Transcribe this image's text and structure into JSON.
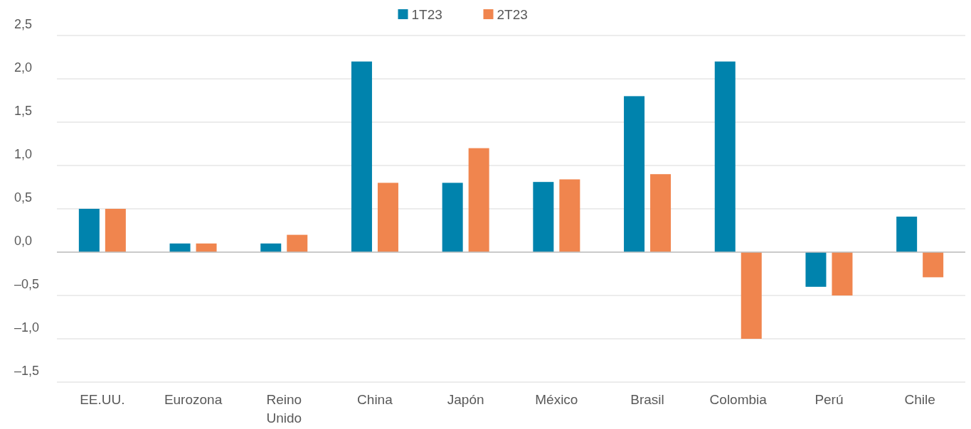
{
  "chart_data": {
    "type": "bar",
    "categories": [
      "EE.UU.",
      "Eurozona",
      "Reino Unido",
      "China",
      "Japón",
      "México",
      "Brasil",
      "Colombia",
      "Perú",
      "Chile"
    ],
    "series": [
      {
        "name": "1T23",
        "color": "#0083ad",
        "values": [
          0.5,
          0.1,
          0.1,
          2.2,
          0.8,
          0.81,
          1.8,
          2.2,
          -0.4,
          0.41
        ]
      },
      {
        "name": "2T23",
        "color": "#f0854e",
        "values": [
          0.5,
          0.1,
          0.2,
          0.8,
          1.2,
          0.84,
          0.9,
          -1.0,
          -0.5,
          -0.29
        ]
      }
    ],
    "ylim": [
      -1.5,
      2.5
    ],
    "yticks": [
      {
        "value": -1.5,
        "label": "–1,5"
      },
      {
        "value": -1,
        "label": "–1,0"
      },
      {
        "value": -0.5,
        "label": "–0,5"
      },
      {
        "value": 0,
        "label": "0,0"
      },
      {
        "value": 0.5,
        "label": "0,5"
      },
      {
        "value": 1,
        "label": "1,0"
      },
      {
        "value": 1.5,
        "label": "1,5"
      },
      {
        "value": 2,
        "label": "2,0"
      },
      {
        "value": 2.5,
        "label": "2,5"
      }
    ],
    "grid": "y",
    "legend": "top"
  }
}
